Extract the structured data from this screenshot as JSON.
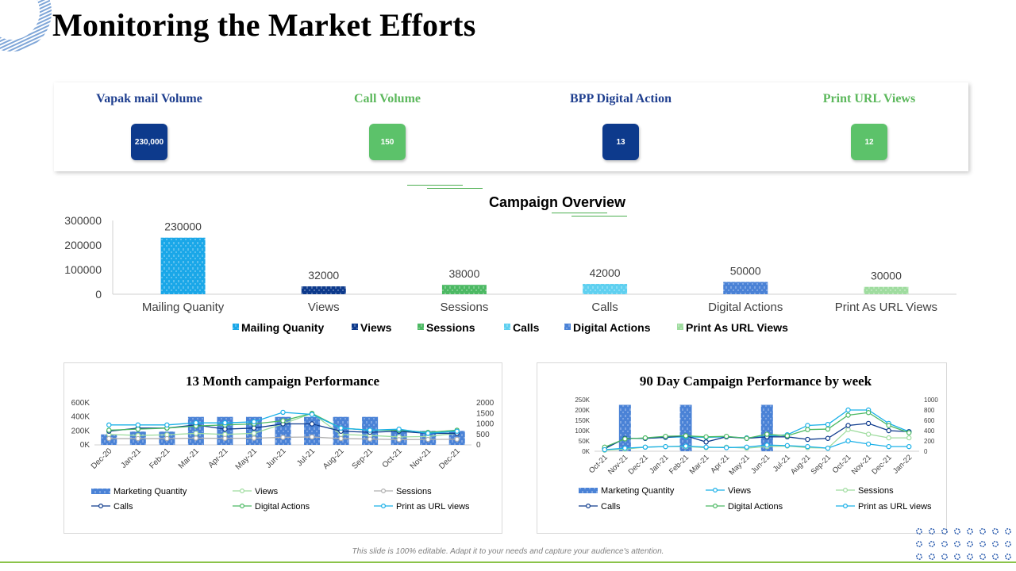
{
  "page_title": "Monitoring the Market Efforts",
  "footer_note": "This slide is 100% editable. Adapt it to your needs and capture your audience's attention.",
  "kpis": [
    {
      "label": "Vapak mail Volume",
      "value": "230,000",
      "label_color": "#1f3f8f",
      "badge_color": "#0d3a8c"
    },
    {
      "label": "Call Volume",
      "value": "150",
      "label_color": "#5cb85c",
      "badge_color": "#5cc26a"
    },
    {
      "label": "BPP Digital Action",
      "value": "13",
      "label_color": "#1f3f8f",
      "badge_color": "#0d3a8c"
    },
    {
      "label": "Print  URL Views",
      "value": "12",
      "label_color": "#5cb85c",
      "badge_color": "#5cc26a"
    }
  ],
  "chart_data": [
    {
      "type": "bar",
      "title": "Campaign Overview",
      "categories": [
        "Mailing Quanity",
        "Views",
        "Sessions",
        "Calls",
        "Digital Actions",
        "Print As URL Views"
      ],
      "values": [
        230000,
        32000,
        38000,
        42000,
        50000,
        30000
      ],
      "colors": [
        "#1aa7e8",
        "#0d3a8c",
        "#4cb963",
        "#5fd0f0",
        "#4a82d6",
        "#9fdc9f"
      ],
      "legend": [
        "Mailing Quanity",
        "Views",
        "Sessions",
        "Calls",
        "Digital Actions",
        "Print As URL Views"
      ],
      "y_ticks": [
        "300000",
        "200000",
        "100000",
        "0"
      ],
      "ylim": [
        0,
        300000
      ],
      "legend_position": "bottom"
    },
    {
      "type": "bar",
      "title": "13 Month campaign Performance",
      "categories": [
        "Dec-20",
        "Jan-21",
        "Feb-21",
        "Mar-21",
        "Apr-21",
        "May-21",
        "Jun-21",
        "Jul-21",
        "Aug-21",
        "Sep-21",
        "Oct-21",
        "Nov-21",
        "Dec-21"
      ],
      "y_left_ticks": [
        "600K",
        "400K",
        "200K",
        "0K"
      ],
      "y_right_ticks": [
        "2000",
        "1500",
        "1000",
        "500",
        "0"
      ],
      "ylim_left": [
        0,
        600000
      ],
      "ylim_right": [
        0,
        2000
      ],
      "series": [
        {
          "name": "Marketing Quantity",
          "axis": "left",
          "kind": "bar",
          "color": "#4a82d6",
          "values": [
            150000,
            190000,
            190000,
            400000,
            400000,
            400000,
            400000,
            400000,
            400000,
            400000,
            210000,
            200000,
            200000
          ]
        },
        {
          "name": "Views",
          "axis": "right",
          "kind": "line",
          "color": "#9fdc9f",
          "values": [
            500,
            450,
            480,
            550,
            500,
            550,
            1000,
            1500,
            500,
            450,
            380,
            400,
            550
          ]
        },
        {
          "name": "Sessions",
          "axis": "right",
          "kind": "line",
          "color": "#b0b0b0",
          "values": [
            300,
            300,
            300,
            320,
            310,
            320,
            360,
            380,
            300,
            280,
            250,
            260,
            270
          ]
        },
        {
          "name": "Calls",
          "axis": "right",
          "kind": "line",
          "color": "#0d3a8c",
          "values": [
            650,
            800,
            800,
            950,
            750,
            800,
            1000,
            1000,
            650,
            600,
            650,
            550,
            550
          ]
        },
        {
          "name": "Digital Actions",
          "axis": "right",
          "kind": "line",
          "color": "#4cb963",
          "values": [
            700,
            750,
            800,
            900,
            950,
            1000,
            1150,
            1500,
            800,
            700,
            700,
            600,
            700
          ]
        },
        {
          "name": "Print as URL views",
          "axis": "right",
          "kind": "line",
          "color": "#1ab0e8",
          "values": [
            950,
            950,
            950,
            1050,
            1050,
            1100,
            1550,
            1450,
            800,
            700,
            750,
            550,
            650
          ]
        }
      ],
      "legend_position": "bottom"
    },
    {
      "type": "bar",
      "title": "90 Day Campaign Performance by week",
      "categories": [
        "Oct-21",
        "Nov-21",
        "Dec-21",
        "Jan-21",
        "Feb-21",
        "Mar-21",
        "Apr-21",
        "May-21",
        "Jun-21",
        "Jul-21",
        "Aug-21",
        "Sep-21",
        "Oct-21",
        "Nov-21",
        "Dec-21",
        "Jan-22"
      ],
      "y_left_ticks": [
        "250K",
        "200K",
        "150K",
        "100K",
        "50K",
        "0K"
      ],
      "y_right_ticks": [
        "1000",
        "800",
        "600",
        "400",
        "200",
        "0"
      ],
      "ylim_left": [
        0,
        250000
      ],
      "ylim_right": [
        0,
        1000
      ],
      "series": [
        {
          "name": "Marketing Quantity",
          "axis": "left",
          "kind": "bar",
          "color": "#4a82d6",
          "values": [
            0,
            225000,
            0,
            0,
            225000,
            0,
            0,
            0,
            225000,
            0,
            0,
            0,
            0,
            0,
            0,
            0
          ]
        },
        {
          "name": "Views",
          "axis": "right",
          "kind": "line",
          "color": "#1ab0e8",
          "values": [
            50,
            250,
            250,
            270,
            280,
            270,
            280,
            260,
            290,
            320,
            500,
            520,
            800,
            800,
            540,
            380
          ]
        },
        {
          "name": "Sessions",
          "axis": "right",
          "kind": "line",
          "color": "#9fdc9f",
          "values": [
            20,
            40,
            80,
            90,
            90,
            70,
            80,
            60,
            90,
            100,
            70,
            60,
            420,
            330,
            260,
            260
          ]
        },
        {
          "name": "Calls",
          "axis": "right",
          "kind": "line",
          "color": "#0d3a8c",
          "values": [
            50,
            250,
            250,
            270,
            300,
            180,
            280,
            250,
            280,
            280,
            230,
            250,
            500,
            540,
            400,
            380
          ]
        },
        {
          "name": "Digital Actions",
          "axis": "right",
          "kind": "line",
          "color": "#4cb963",
          "values": [
            80,
            240,
            260,
            290,
            300,
            280,
            290,
            250,
            330,
            300,
            420,
            430,
            700,
            750,
            500,
            360
          ]
        },
        {
          "name": "Print as URL views",
          "axis": "right",
          "kind": "line",
          "color": "#1ab0e8",
          "values": [
            30,
            60,
            80,
            90,
            100,
            80,
            70,
            80,
            120,
            110,
            90,
            60,
            200,
            140,
            90,
            90
          ]
        }
      ],
      "legend_position": "bottom"
    }
  ]
}
